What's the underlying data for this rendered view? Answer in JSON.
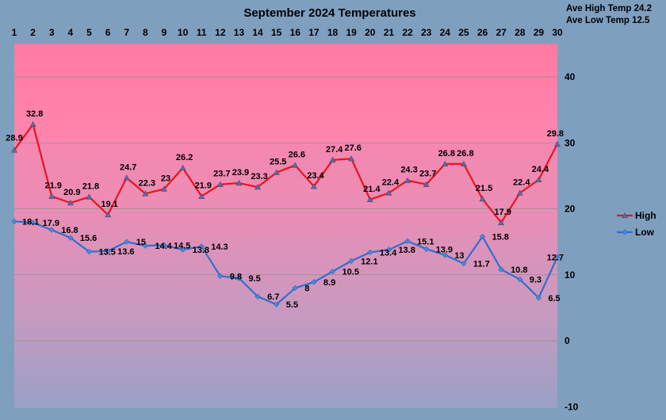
{
  "chart_data": {
    "type": "line",
    "title": "September 2024 Temperatures",
    "stats": [
      "Ave High Temp 24.2",
      "Ave Low Temp 12.5"
    ],
    "x": [
      "1",
      "2",
      "3",
      "4",
      "5",
      "6",
      "7",
      "8",
      "9",
      "10",
      "11",
      "12",
      "13",
      "14",
      "15",
      "16",
      "17",
      "18",
      "19",
      "20",
      "21",
      "22",
      "23",
      "24",
      "25",
      "26",
      "27",
      "28",
      "29",
      "30"
    ],
    "ylim": [
      -10,
      45
    ],
    "yticks": [
      -10,
      0,
      10,
      20,
      30,
      40
    ],
    "grid": true,
    "legend": "right",
    "background_gradient": {
      "top": "#ff80a8",
      "bottom": "#9aa4c8",
      "hot_band_top": "#ff7aa0",
      "hot_band_bottom": "#ff88ae"
    },
    "series": [
      {
        "name": "High",
        "color": "#e8141c",
        "marker": "triangle",
        "values": [
          28.9,
          32.8,
          21.9,
          20.9,
          21.8,
          19.1,
          24.7,
          22.3,
          23,
          26.2,
          21.9,
          23.7,
          23.9,
          23.3,
          25.5,
          26.6,
          23.4,
          27.4,
          27.6,
          21.4,
          22.4,
          24.3,
          23.7,
          26.8,
          26.8,
          21.5,
          17.9,
          22.4,
          24.4,
          29.8
        ]
      },
      {
        "name": "Low",
        "color": "#2f6fd0",
        "marker": "diamond",
        "values": [
          18.1,
          17.9,
          16.8,
          15.6,
          13.5,
          13.6,
          15,
          14.4,
          14.5,
          13.8,
          14.3,
          9.8,
          9.5,
          6.7,
          5.5,
          8,
          8.9,
          10.5,
          12.1,
          13.4,
          13.8,
          15.1,
          13.9,
          13,
          11.7,
          15.8,
          10.8,
          9.3,
          6.5,
          12.7
        ]
      }
    ]
  }
}
